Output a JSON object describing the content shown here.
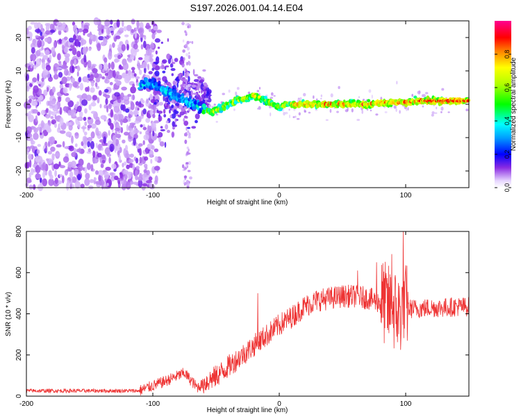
{
  "title": "S197.2026.001.04.14.E04",
  "chart_data": [
    {
      "type": "heatmap",
      "name": "spectrogram",
      "xlabel": "Height of straight line (km)",
      "ylabel": "Frequency (Hz)",
      "xlim": [
        -200,
        150
      ],
      "ylim": [
        -25,
        25
      ],
      "x_ticks": [
        -200,
        -100,
        0,
        100
      ],
      "y_ticks": [
        -20,
        -10,
        0,
        10,
        20
      ],
      "colorbar": {
        "label": "Normalized spectral amplitude",
        "range": [
          0,
          1
        ],
        "ticks": [
          0.0,
          0.2,
          0.4,
          0.6,
          0.8
        ]
      },
      "ridge": {
        "description": "frequency of peak amplitude vs height",
        "x": [
          -100,
          -95,
          -90,
          -85,
          -80,
          -75,
          -70,
          -65,
          -60,
          -55,
          -50,
          -45,
          -40,
          -35,
          -30,
          -25,
          -20,
          -15,
          -10,
          -5,
          0,
          5,
          10,
          20,
          30,
          40,
          50,
          60,
          70,
          80,
          90,
          100,
          110,
          120,
          130,
          140,
          150
        ],
        "y": [
          6,
          5,
          4,
          3,
          2,
          1,
          0,
          -0.5,
          -1.5,
          -2.5,
          -2,
          -1,
          0,
          1,
          1.5,
          2,
          2.5,
          2,
          1,
          0,
          -1,
          0,
          0,
          0,
          0,
          0,
          0,
          0,
          0,
          0.5,
          0.5,
          0.5,
          1,
          1,
          1,
          1,
          1
        ]
      }
    },
    {
      "type": "line",
      "name": "snr",
      "xlabel": "Height of straight line (km)",
      "ylabel": "SNR (10 * v/v)",
      "xlim": [
        -200,
        150
      ],
      "ylim": [
        0,
        800
      ],
      "x_ticks": [
        -200,
        -100,
        0,
        100
      ],
      "y_ticks": [
        0,
        200,
        400,
        600,
        800
      ],
      "color": "#ee3333",
      "trend": {
        "x": [
          -200,
          -110,
          -90,
          -75,
          -65,
          -50,
          -40,
          -30,
          -20,
          -10,
          0,
          10,
          20,
          30,
          40,
          50,
          60,
          70,
          80,
          85,
          90,
          95,
          100,
          110,
          120,
          130,
          140,
          150
        ],
        "y": [
          25,
          25,
          70,
          110,
          40,
          90,
          140,
          190,
          240,
          290,
          340,
          380,
          430,
          460,
          470,
          480,
          480,
          470,
          450,
          420,
          400,
          380,
          420,
          420,
          425,
          425,
          430,
          430
        ]
      },
      "spikes": [
        {
          "x": -17,
          "y": 500
        },
        {
          "x": 62,
          "y": 610
        },
        {
          "x": 77,
          "y": 650
        },
        {
          "x": 89,
          "y": 690
        },
        {
          "x": 98,
          "y": 800
        }
      ]
    }
  ]
}
